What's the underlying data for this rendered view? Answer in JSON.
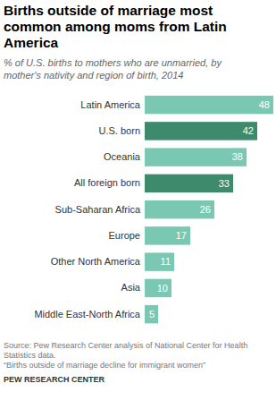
{
  "chart_data": {
    "type": "bar",
    "orientation": "horizontal",
    "title": "Births outside of marriage most common among moms from Latin America",
    "subtitle": "% of U.S. births to mothers who are unmarried, by mother's nativity and region of birth, 2014",
    "categories": [
      "Latin America",
      "U.S. born",
      "Oceania",
      "All foreign born",
      "Sub-Saharan Africa",
      "Europe",
      "Other North America",
      "Asia",
      "Middle East-North Africa"
    ],
    "values": [
      48,
      42,
      38,
      33,
      26,
      17,
      11,
      10,
      5
    ],
    "colors": [
      "#7bc8b2",
      "#3d8b6c",
      "#7bc8b2",
      "#3d8b6c",
      "#7bc8b2",
      "#7bc8b2",
      "#7bc8b2",
      "#7bc8b2",
      "#7bc8b2"
    ],
    "ylim": [
      0,
      48
    ],
    "data_labels": true,
    "tick_labels": false,
    "grid": false,
    "source": "Source: Pew Research Center analysis of National Center for Health Statistics data.",
    "note": "“Births outside of marriage decline for immigrant women”",
    "credit": "PEW RESEARCH CENTER"
  }
}
